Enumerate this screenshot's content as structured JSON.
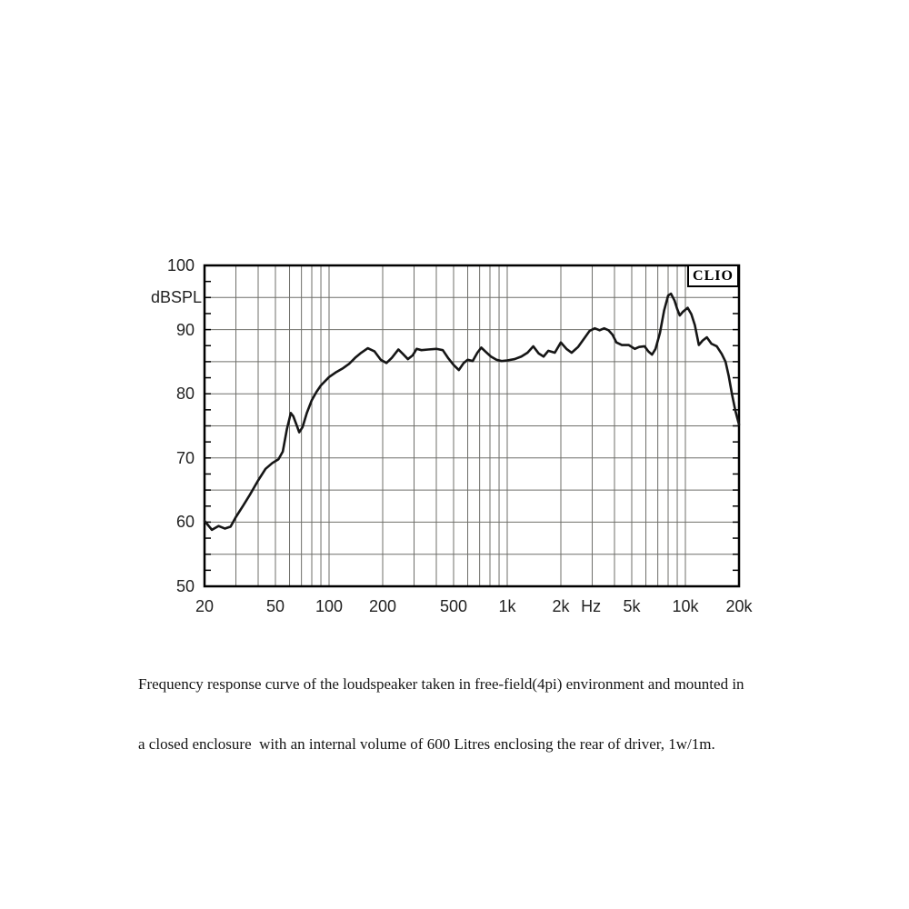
{
  "clio": {
    "label": "CLIO"
  },
  "y_axis": {
    "unit_label": "dBSPL",
    "ticks": [
      "100",
      "90",
      "80",
      "70",
      "60",
      "50"
    ]
  },
  "x_axis": {
    "labels": [
      {
        "label": "20",
        "f": 20
      },
      {
        "label": "50",
        "f": 50
      },
      {
        "label": "100",
        "f": 100
      },
      {
        "label": "200",
        "f": 200
      },
      {
        "label": "500",
        "f": 500
      },
      {
        "label": "1k",
        "f": 1000
      },
      {
        "label": "2k",
        "f": 2000
      },
      {
        "label": "Hz",
        "f": 2950,
        "unit": true
      },
      {
        "label": "5k",
        "f": 5000
      },
      {
        "label": "10k",
        "f": 10000
      },
      {
        "label": "20k",
        "f": 20000
      }
    ]
  },
  "caption": {
    "line1": "Frequency response curve of the loudspeaker taken in free-field(4pi) environment and mounted in",
    "line2": "a closed enclosure  with an internal volume of 600 Litres enclosing the rear of driver, 1w/1m."
  },
  "chart_data": {
    "type": "line",
    "title": "",
    "xlabel": "Hz",
    "ylabel": "dBSPL",
    "xscale": "log",
    "xlim": [
      20,
      20000
    ],
    "ylim": [
      50,
      100
    ],
    "grid": true,
    "grid_step_db": 5,
    "axis_tick_step_db": 2.5,
    "line_color": "#161616",
    "grid_color": "#6f6f6a",
    "series_name": "frequency-response-curve",
    "x": [
      20,
      22,
      24,
      26,
      28,
      30,
      33,
      36,
      40,
      44,
      48,
      52,
      55,
      58,
      61,
      63,
      66,
      68,
      71,
      75,
      80,
      85,
      90,
      100,
      110,
      120,
      130,
      140,
      150,
      165,
      180,
      195,
      210,
      225,
      245,
      260,
      277,
      295,
      310,
      330,
      360,
      400,
      435,
      465,
      500,
      535,
      570,
      600,
      640,
      680,
      715,
      760,
      810,
      870,
      930,
      1000,
      1100,
      1200,
      1300,
      1400,
      1500,
      1600,
      1700,
      1850,
      2000,
      2150,
      2300,
      2500,
      2700,
      2900,
      3100,
      3300,
      3500,
      3700,
      3900,
      4100,
      4400,
      4800,
      5200,
      5500,
      5900,
      6200,
      6500,
      6800,
      7200,
      7600,
      8000,
      8300,
      8700,
      9000,
      9300,
      9700,
      10300,
      10800,
      11300,
      11900,
      12500,
      13200,
      14000,
      15000,
      16000,
      16800,
      17500,
      18300,
      19100,
      20000
    ],
    "y": [
      60.2,
      58.8,
      59.4,
      59.0,
      59.3,
      60.8,
      62.6,
      64.3,
      66.5,
      68.3,
      69.2,
      69.8,
      71.0,
      74.5,
      77.0,
      76.5,
      75.0,
      74.0,
      74.8,
      77.0,
      79.0,
      80.3,
      81.3,
      82.6,
      83.4,
      84.0,
      84.7,
      85.6,
      86.3,
      87.1,
      86.6,
      85.3,
      84.8,
      85.6,
      86.9,
      86.2,
      85.4,
      86.0,
      87.0,
      86.8,
      86.9,
      87.0,
      86.8,
      85.6,
      84.5,
      83.7,
      84.8,
      85.3,
      85.1,
      86.4,
      87.2,
      86.5,
      85.8,
      85.3,
      85.1,
      85.2,
      85.4,
      85.8,
      86.4,
      87.4,
      86.3,
      85.8,
      86.7,
      86.4,
      88.0,
      87.0,
      86.4,
      87.3,
      88.6,
      89.8,
      90.2,
      89.9,
      90.2,
      89.9,
      89.2,
      88.0,
      87.6,
      87.6,
      87.0,
      87.3,
      87.4,
      86.6,
      86.1,
      87.0,
      89.5,
      93.0,
      95.3,
      95.6,
      94.5,
      93.2,
      92.2,
      92.8,
      93.4,
      92.4,
      90.7,
      87.6,
      88.3,
      88.8,
      87.8,
      87.4,
      86.2,
      85.0,
      82.8,
      79.8,
      77.3,
      75.2
    ]
  }
}
